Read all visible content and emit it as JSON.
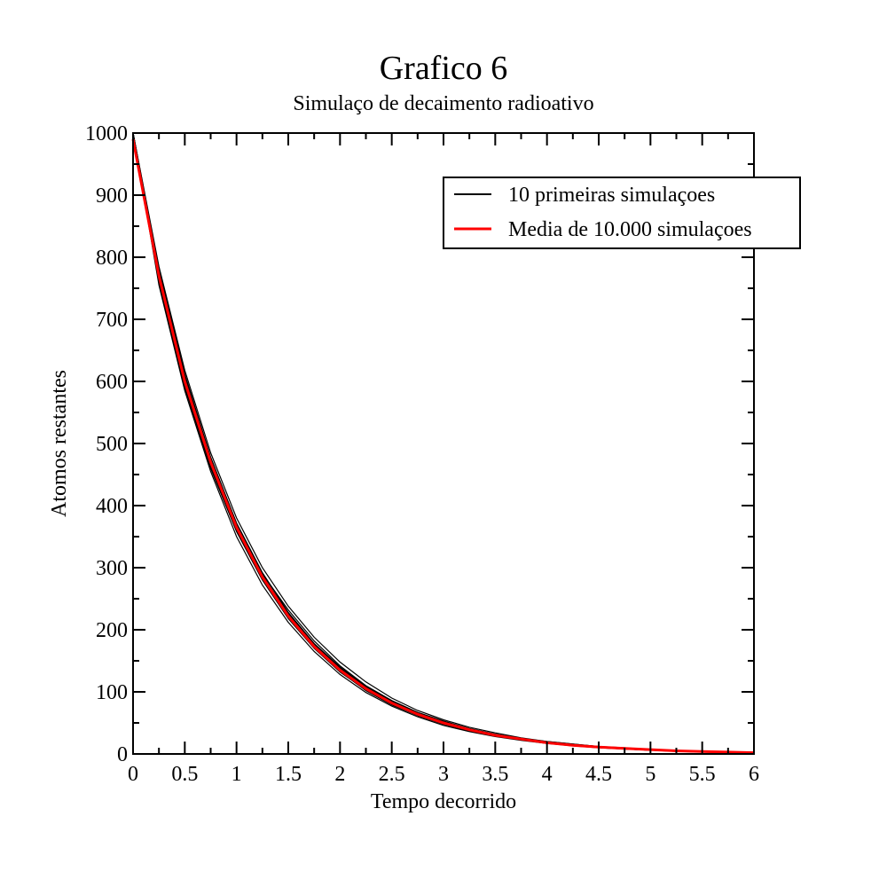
{
  "chart_data": {
    "type": "line",
    "title": "Grafico 6",
    "subtitle": "Simulaço de decaimento radioativo",
    "xlabel": "Tempo decorrido",
    "ylabel": "Atomos restantes",
    "xlim": [
      0,
      6
    ],
    "ylim": [
      0,
      1000
    ],
    "x_ticks": [
      "0",
      "0.5",
      "1",
      "1.5",
      "2",
      "2.5",
      "3",
      "3.5",
      "4",
      "4.5",
      "5",
      "5.5",
      "6"
    ],
    "y_ticks": [
      "0",
      "100",
      "200",
      "300",
      "400",
      "500",
      "600",
      "700",
      "800",
      "900",
      "1000"
    ],
    "grid": false,
    "legend_position": "top-right",
    "x": [
      0,
      0.25,
      0.5,
      0.75,
      1,
      1.25,
      1.5,
      1.75,
      2,
      2.25,
      2.5,
      2.75,
      3,
      3.25,
      3.5,
      3.75,
      4,
      4.25,
      4.5,
      4.75,
      5,
      5.25,
      5.5,
      5.75,
      6
    ],
    "series": [
      {
        "name": "Media de 10.000 simulaçoes",
        "role": "mean",
        "color": "#ff0000",
        "values": [
          990,
          770,
          600,
          470,
          365,
          285,
          222,
          173,
          135,
          105,
          82,
          64,
          50,
          39,
          30,
          24,
          18,
          14,
          11,
          9,
          7,
          5,
          4,
          3,
          2
        ]
      },
      {
        "name": "10 primeiras simulaçoes",
        "role": "run",
        "color": "#000000",
        "runs": [
          [
            1000,
            780,
            612,
            478,
            372,
            292,
            228,
            178,
            140,
            108,
            85,
            66,
            52,
            40,
            31,
            25,
            19,
            15,
            12,
            9,
            7,
            5,
            4,
            3,
            2
          ],
          [
            1000,
            760,
            590,
            460,
            358,
            280,
            218,
            170,
            132,
            103,
            80,
            62,
            48,
            38,
            29,
            23,
            18,
            14,
            11,
            8,
            6,
            5,
            4,
            3,
            2
          ],
          [
            1000,
            775,
            608,
            472,
            368,
            290,
            232,
            182,
            142,
            110,
            86,
            67,
            53,
            41,
            32,
            25,
            20,
            16,
            12,
            9,
            7,
            6,
            4,
            3,
            2
          ],
          [
            1000,
            765,
            595,
            465,
            362,
            282,
            220,
            172,
            134,
            104,
            81,
            63,
            49,
            38,
            30,
            23,
            18,
            14,
            11,
            8,
            6,
            5,
            4,
            3,
            2
          ],
          [
            1000,
            785,
            618,
            485,
            380,
            300,
            238,
            188,
            148,
            116,
            90,
            70,
            55,
            43,
            34,
            26,
            20,
            16,
            12,
            10,
            7,
            6,
            4,
            3,
            2
          ],
          [
            1000,
            755,
            585,
            455,
            350,
            272,
            212,
            165,
            128,
            99,
            77,
            60,
            46,
            36,
            28,
            22,
            17,
            13,
            10,
            8,
            6,
            4,
            3,
            2,
            2
          ],
          [
            1000,
            770,
            600,
            468,
            366,
            286,
            224,
            175,
            137,
            106,
            83,
            64,
            50,
            39,
            30,
            24,
            19,
            14,
            11,
            9,
            7,
            5,
            4,
            3,
            2
          ],
          [
            1000,
            778,
            605,
            474,
            370,
            288,
            226,
            177,
            138,
            108,
            84,
            65,
            51,
            40,
            31,
            24,
            19,
            15,
            11,
            9,
            7,
            5,
            4,
            3,
            2
          ],
          [
            1000,
            762,
            592,
            462,
            360,
            283,
            219,
            171,
            133,
            102,
            79,
            62,
            48,
            37,
            29,
            23,
            18,
            14,
            10,
            8,
            6,
            5,
            4,
            3,
            2
          ],
          [
            1000,
            772,
            603,
            470,
            364,
            285,
            223,
            174,
            136,
            107,
            83,
            64,
            50,
            39,
            30,
            24,
            18,
            14,
            11,
            9,
            7,
            5,
            4,
            3,
            2
          ]
        ]
      }
    ]
  }
}
